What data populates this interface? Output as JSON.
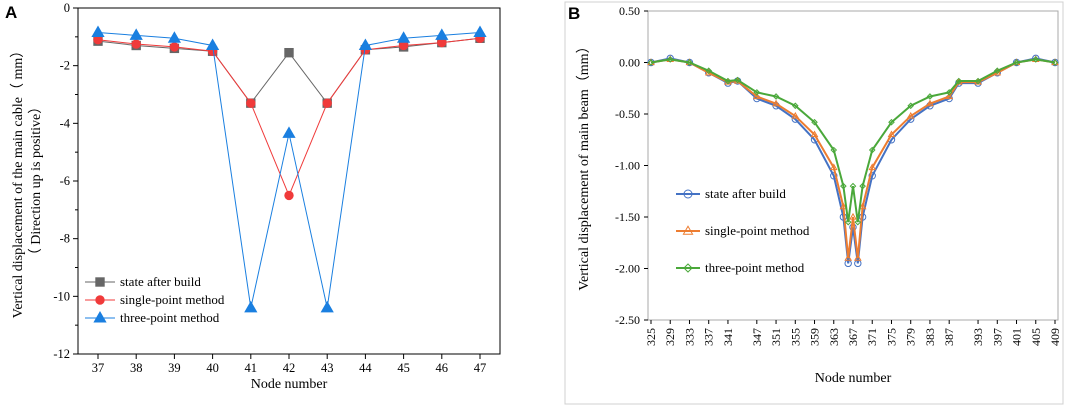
{
  "chart_data": [
    {
      "panel": "A",
      "type": "line",
      "title": "",
      "xlabel": "Node number",
      "ylabel": "Vertical displacement of the main cable（ mm）",
      "ylabel2": "（ Direction up is positive）",
      "categories": [
        "37",
        "38",
        "39",
        "40",
        "41",
        "42",
        "43",
        "44",
        "45",
        "46",
        "47"
      ],
      "ylim": [
        -12,
        0
      ],
      "yticks": [
        0,
        -2,
        -4,
        -6,
        -8,
        -10,
        -12
      ],
      "grid": false,
      "legend_position": "bottom-left",
      "series": [
        {
          "name": "state after build",
          "color": "#666666",
          "marker": "square",
          "values": [
            -1.15,
            -1.3,
            -1.4,
            -1.5,
            -3.3,
            -1.55,
            -3.3,
            -1.45,
            -1.35,
            -1.2,
            -1.05
          ]
        },
        {
          "name": "single-point method",
          "color": "#f03a3a",
          "marker": "circle",
          "values": [
            -1.1,
            -1.25,
            -1.35,
            -1.5,
            -3.3,
            -6.5,
            -3.3,
            -1.45,
            -1.3,
            -1.2,
            -1.05
          ]
        },
        {
          "name": "three-point method",
          "color": "#1a7fe0",
          "marker": "triangle",
          "values": [
            -0.85,
            -0.95,
            -1.05,
            -1.3,
            -10.4,
            -4.35,
            -10.4,
            -1.3,
            -1.05,
            -0.95,
            -0.85
          ]
        }
      ]
    },
    {
      "panel": "B",
      "type": "line",
      "title": "",
      "xlabel": "Node number",
      "ylabel": "Vertical displacement of main beam（mm）",
      "xlim": [
        325,
        409
      ],
      "xticks": [
        325,
        329,
        333,
        337,
        341,
        347,
        351,
        355,
        359,
        363,
        367,
        371,
        375,
        379,
        383,
        387,
        393,
        397,
        401,
        405,
        409
      ],
      "ylim": [
        -2.5,
        0.5
      ],
      "yticks": [
        "0.50",
        "0.00",
        "-0.50",
        "-1.00",
        "-1.50",
        "-2.00",
        "-2.50"
      ],
      "grid": false,
      "legend_position": "center-left",
      "series": [
        {
          "name": "state after build",
          "color": "#4472c4",
          "marker": "circle",
          "x": [
            325,
            329,
            333,
            337,
            341,
            343,
            347,
            351,
            355,
            359,
            363,
            365,
            366,
            367,
            368,
            369,
            371,
            375,
            379,
            383,
            387,
            389,
            393,
            397,
            401,
            405,
            409
          ],
          "y": [
            0.0,
            0.04,
            0.0,
            -0.1,
            -0.2,
            -0.18,
            -0.35,
            -0.42,
            -0.55,
            -0.75,
            -1.1,
            -1.5,
            -1.95,
            -1.6,
            -1.95,
            -1.5,
            -1.1,
            -0.75,
            -0.55,
            -0.42,
            -0.35,
            -0.2,
            -0.2,
            -0.1,
            0.0,
            0.04,
            0.0
          ]
        },
        {
          "name": "single-point method",
          "color": "#ed7d31",
          "marker": "triangle",
          "x": [
            325,
            329,
            333,
            337,
            341,
            343,
            347,
            351,
            355,
            359,
            363,
            365,
            366,
            367,
            368,
            369,
            371,
            375,
            379,
            383,
            387,
            389,
            393,
            397,
            401,
            405,
            409
          ],
          "y": [
            0.0,
            0.03,
            0.0,
            -0.1,
            -0.19,
            -0.18,
            -0.33,
            -0.4,
            -0.52,
            -0.7,
            -1.02,
            -1.4,
            -1.9,
            -1.5,
            -1.9,
            -1.4,
            -1.02,
            -0.7,
            -0.52,
            -0.4,
            -0.33,
            -0.19,
            -0.19,
            -0.1,
            0.0,
            0.03,
            0.0
          ]
        },
        {
          "name": "three-point method",
          "color": "#4aa83a",
          "marker": "diamond",
          "x": [
            325,
            329,
            333,
            337,
            341,
            343,
            347,
            351,
            355,
            359,
            363,
            365,
            366,
            367,
            368,
            369,
            371,
            375,
            379,
            383,
            387,
            389,
            393,
            397,
            401,
            405,
            409
          ],
          "y": [
            0.0,
            0.03,
            0.0,
            -0.08,
            -0.18,
            -0.17,
            -0.29,
            -0.33,
            -0.42,
            -0.58,
            -0.85,
            -1.2,
            -1.55,
            -1.2,
            -1.55,
            -1.2,
            -0.85,
            -0.58,
            -0.42,
            -0.33,
            -0.29,
            -0.18,
            -0.18,
            -0.08,
            0.0,
            0.03,
            0.0
          ]
        }
      ]
    }
  ]
}
